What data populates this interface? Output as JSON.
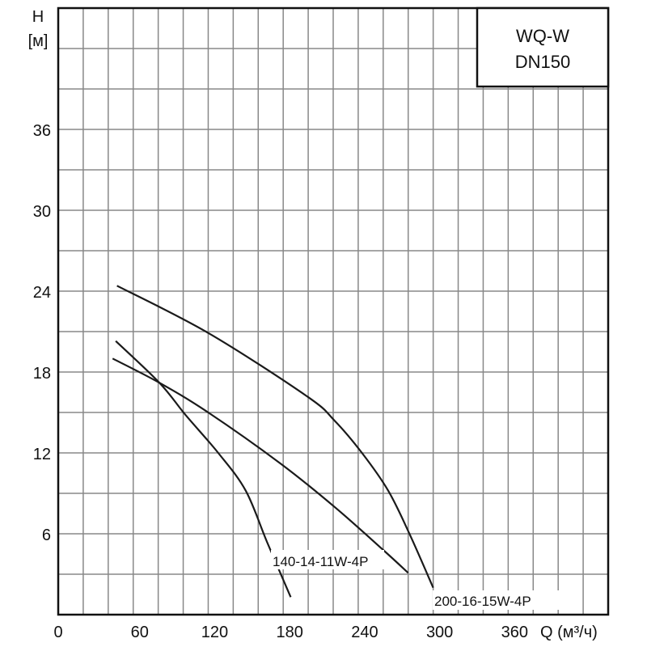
{
  "chart_data": {
    "type": "line",
    "title_box": [
      "WQ-W",
      "DN150"
    ],
    "xlabel": "Q (м³/ч)",
    "ylabel_line1": "H",
    "ylabel_line2": "[м]",
    "xlim": [
      0,
      440
    ],
    "ylim": [
      0,
      45
    ],
    "x_ticks": [
      0,
      60,
      120,
      180,
      240,
      300,
      360
    ],
    "y_ticks": [
      6,
      12,
      18,
      24,
      30,
      36
    ],
    "x_grid_step": 20,
    "y_grid_step": 3,
    "grid": true,
    "series": [
      {
        "name": "200-16-15W-4P",
        "points": [
          [
            47,
            24.4
          ],
          [
            120,
            20.9
          ],
          [
            199,
            16.2
          ],
          [
            221,
            14.4
          ],
          [
            243,
            12
          ],
          [
            264,
            9.2
          ],
          [
            281,
            6
          ],
          [
            300,
            2
          ]
        ]
      },
      {
        "name": "140-14-11W-4P",
        "points": [
          [
            43.5,
            19
          ],
          [
            81,
            17.2
          ],
          [
            120,
            15
          ],
          [
            178,
            11.2
          ],
          [
            221,
            8
          ],
          [
            260,
            4.8
          ],
          [
            280,
            3.1
          ]
        ]
      },
      {
        "points": [
          [
            46,
            20.3
          ],
          [
            81,
            17.2
          ],
          [
            102,
            14.8
          ],
          [
            128,
            12
          ],
          [
            150,
            9.2
          ],
          [
            167,
            5.4
          ],
          [
            186,
            1.3
          ]
        ]
      }
    ]
  }
}
